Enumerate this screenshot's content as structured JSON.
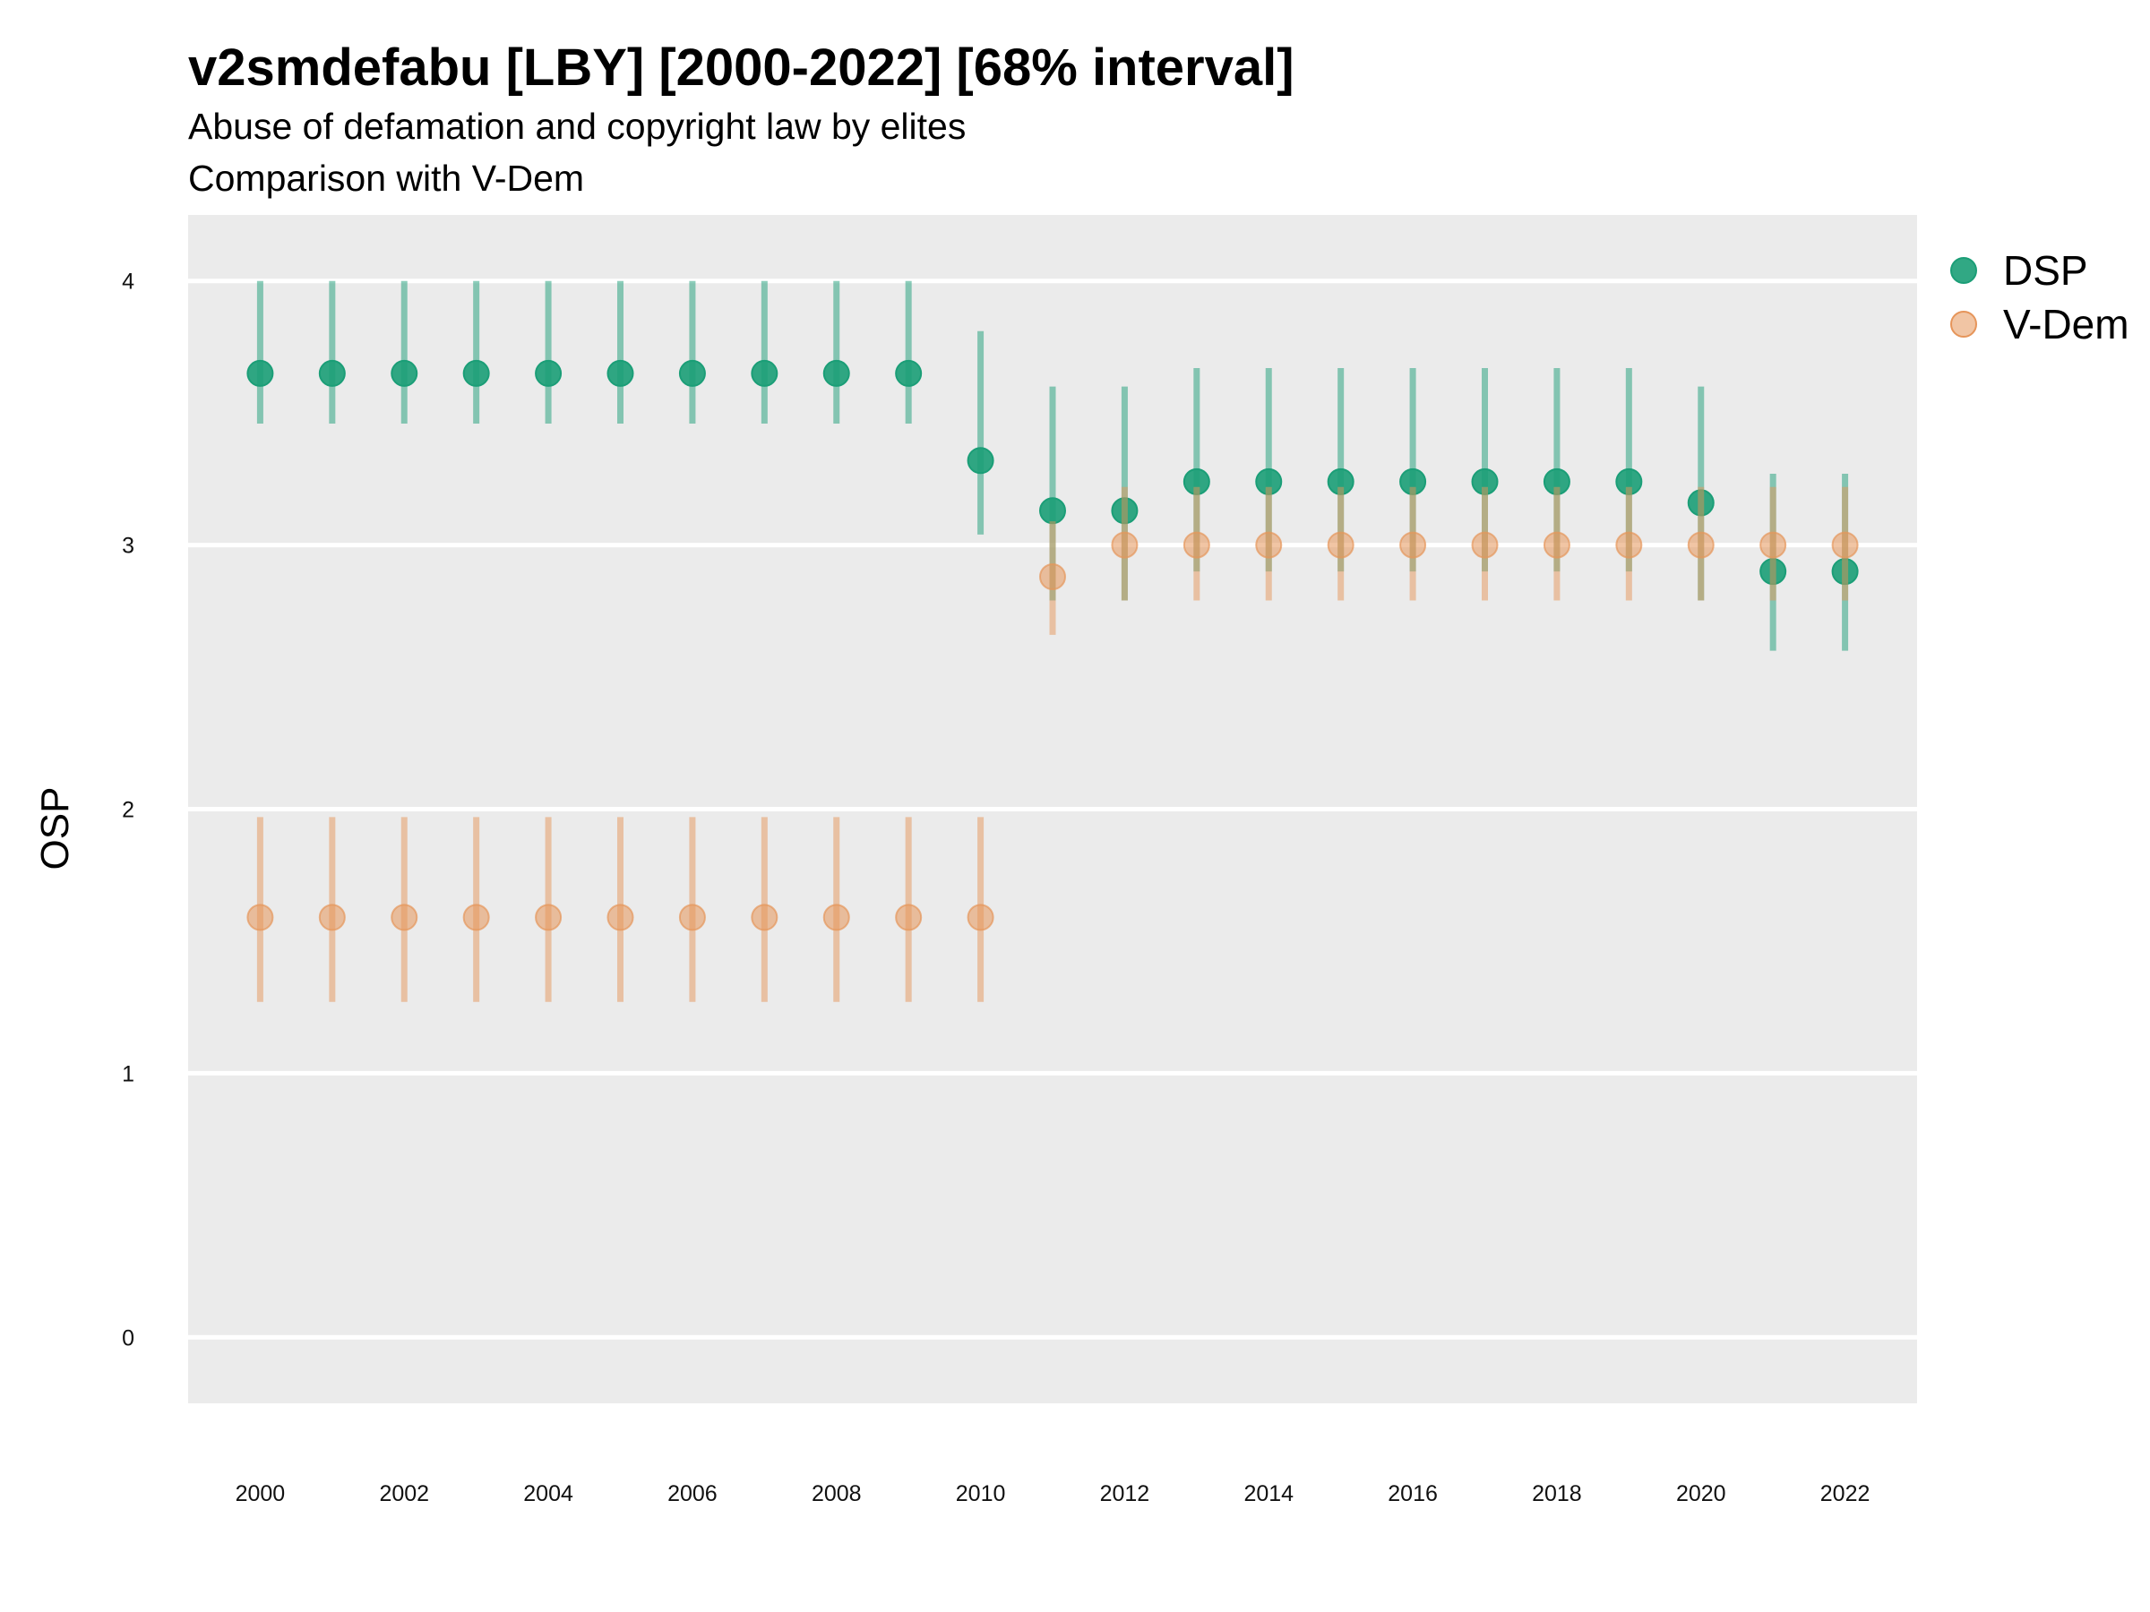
{
  "chart_data": {
    "type": "scatter",
    "title": "v2smdefabu [LBY] [2000-2022] [68% interval]",
    "subtitle": "Abuse of defamation and copyright law by elites",
    "subtitle2": "Comparison with V-Dem",
    "ylabel": "OSP",
    "xlabel": "",
    "xlim": [
      1999.0,
      2023.0
    ],
    "ylim": [
      -0.25,
      4.25
    ],
    "x_ticks": [
      2000,
      2002,
      2004,
      2006,
      2008,
      2010,
      2012,
      2014,
      2016,
      2018,
      2020,
      2022
    ],
    "y_ticks": [
      0,
      1,
      2,
      3,
      4
    ],
    "grid": true,
    "legend_position": "right",
    "series": [
      {
        "name": "DSP",
        "color": "#1b9e77",
        "x": [
          2000,
          2001,
          2002,
          2003,
          2004,
          2005,
          2006,
          2007,
          2008,
          2009,
          2010,
          2011,
          2012,
          2013,
          2014,
          2015,
          2016,
          2017,
          2018,
          2019,
          2020,
          2021,
          2022
        ],
        "y": [
          3.65,
          3.65,
          3.65,
          3.65,
          3.65,
          3.65,
          3.65,
          3.65,
          3.65,
          3.65,
          3.32,
          3.13,
          3.13,
          3.24,
          3.24,
          3.24,
          3.24,
          3.24,
          3.24,
          3.24,
          3.16,
          2.9,
          2.9
        ],
        "lower": [
          3.46,
          3.46,
          3.46,
          3.46,
          3.46,
          3.46,
          3.46,
          3.46,
          3.46,
          3.46,
          3.04,
          2.79,
          2.79,
          2.9,
          2.9,
          2.9,
          2.9,
          2.9,
          2.9,
          2.9,
          2.79,
          2.6,
          2.6
        ],
        "upper": [
          4.0,
          4.0,
          4.0,
          4.0,
          4.0,
          4.0,
          4.0,
          4.0,
          4.0,
          4.0,
          3.81,
          3.6,
          3.6,
          3.67,
          3.67,
          3.67,
          3.67,
          3.67,
          3.67,
          3.67,
          3.6,
          3.27,
          3.27
        ]
      },
      {
        "name": "V-Dem",
        "color": "#e6955a",
        "x": [
          2000,
          2001,
          2002,
          2003,
          2004,
          2005,
          2006,
          2007,
          2008,
          2009,
          2010,
          2011,
          2012,
          2013,
          2014,
          2015,
          2016,
          2017,
          2018,
          2019,
          2020,
          2021,
          2022
        ],
        "y": [
          1.59,
          1.59,
          1.59,
          1.59,
          1.59,
          1.59,
          1.59,
          1.59,
          1.59,
          1.59,
          1.59,
          2.88,
          3.0,
          3.0,
          3.0,
          3.0,
          3.0,
          3.0,
          3.0,
          3.0,
          3.0,
          3.0,
          3.0
        ],
        "lower": [
          1.27,
          1.27,
          1.27,
          1.27,
          1.27,
          1.27,
          1.27,
          1.27,
          1.27,
          1.27,
          1.27,
          2.66,
          2.79,
          2.79,
          2.79,
          2.79,
          2.79,
          2.79,
          2.79,
          2.79,
          2.79,
          2.79,
          2.79
        ],
        "upper": [
          1.97,
          1.97,
          1.97,
          1.97,
          1.97,
          1.97,
          1.97,
          1.97,
          1.97,
          1.97,
          1.97,
          3.09,
          3.22,
          3.22,
          3.22,
          3.22,
          3.22,
          3.22,
          3.22,
          3.22,
          3.22,
          3.22,
          3.22
        ]
      }
    ]
  }
}
